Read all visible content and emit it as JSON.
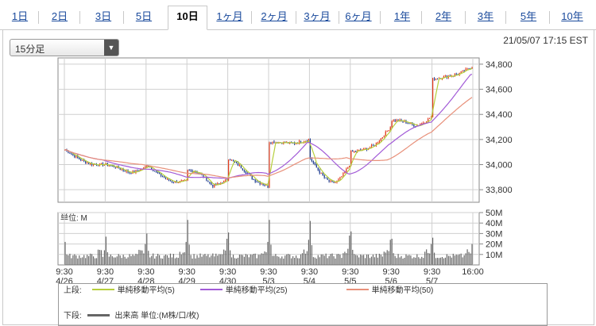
{
  "tabs": [
    {
      "label": "1日",
      "active": false
    },
    {
      "label": "2日",
      "active": false
    },
    {
      "label": "3日",
      "active": false
    },
    {
      "label": "5日",
      "active": false
    },
    {
      "label": "10日",
      "active": true
    },
    {
      "label": "1ヶ月",
      "active": false
    },
    {
      "label": "2ヶ月",
      "active": false
    },
    {
      "label": "3ヶ月",
      "active": false
    },
    {
      "label": "6ヶ月",
      "active": false
    },
    {
      "label": "1年",
      "active": false
    },
    {
      "label": "2年",
      "active": false
    },
    {
      "label": "3年",
      "active": false
    },
    {
      "label": "5年",
      "active": false
    },
    {
      "label": "10年",
      "active": false
    }
  ],
  "interval_select": {
    "value": "15分足"
  },
  "timestamp": "21/05/07 17:15 EST",
  "colors": {
    "up": "#e23b1e",
    "down": "#1d3b8f",
    "ma5": "#b6cf3c",
    "ma25": "#a25bd7",
    "ma50": "#e8907a",
    "volume": "#666666",
    "link": "#1a4a9c"
  },
  "chart_data": [
    {
      "type": "candlestick",
      "title": "",
      "ylabel": "",
      "ylim": [
        33700,
        34850
      ],
      "yticks": [
        "34,800",
        "34,600",
        "34,400",
        "34,200",
        "34,000",
        "33,800"
      ],
      "ytick_values": [
        34800,
        34600,
        34400,
        34200,
        34000,
        33800
      ],
      "x_sessions": [
        "4/26",
        "4/27",
        "4/28",
        "4/29",
        "4/30",
        "5/3",
        "5/4",
        "5/5",
        "5/6",
        "5/7"
      ],
      "session_anchors": [
        {
          "session": "4/26",
          "start": 34120,
          "end": 34000,
          "low": 33950,
          "high": 34130
        },
        {
          "session": "4/27",
          "start": 34000,
          "end": 33980,
          "low": 33910,
          "high": 34050
        },
        {
          "session": "4/28",
          "start": 34000,
          "end": 33870,
          "low": 33800,
          "high": 34020
        },
        {
          "session": "4/29",
          "start": 33950,
          "end": 33880,
          "low": 33780,
          "high": 34080
        },
        {
          "session": "4/30",
          "start": 34050,
          "end": 33830,
          "low": 33790,
          "high": 34100
        },
        {
          "session": "5/3",
          "start": 34180,
          "end": 34200,
          "low": 34150,
          "high": 34220
        },
        {
          "session": "5/4",
          "start": 34050,
          "end": 34000,
          "low": 33780,
          "high": 34100
        },
        {
          "session": "5/5",
          "start": 34100,
          "end": 34300,
          "low": 34020,
          "high": 34320
        },
        {
          "session": "5/6",
          "start": 34350,
          "end": 34380,
          "low": 34270,
          "high": 34450
        },
        {
          "session": "5/7",
          "start": 34680,
          "end": 34780,
          "low": 34650,
          "high": 34800
        }
      ],
      "series": [
        {
          "name": "単純移動平均(5)",
          "color": "#b6cf3c"
        },
        {
          "name": "単純移動平均(25)",
          "color": "#a25bd7"
        },
        {
          "name": "単純移動平均(50)",
          "color": "#e8907a"
        }
      ]
    },
    {
      "type": "bar",
      "title": "",
      "unit_label": "単位: M",
      "ylim": [
        0,
        50
      ],
      "yticks": [
        "50M",
        "40M",
        "30M",
        "20M",
        "10M"
      ],
      "ytick_values": [
        50,
        40,
        30,
        20,
        10
      ],
      "session_volume": [
        {
          "session": "4/26",
          "open_peak": 22,
          "close_peak": 14
        },
        {
          "session": "4/27",
          "open_peak": 27,
          "close_peak": 20
        },
        {
          "session": "4/28",
          "open_peak": 30,
          "close_peak": 22
        },
        {
          "session": "4/29",
          "open_peak": 43,
          "close_peak": 25
        },
        {
          "session": "4/30",
          "open_peak": 31,
          "close_peak": 22
        },
        {
          "session": "5/3",
          "open_peak": 43,
          "close_peak": 24
        },
        {
          "session": "5/4",
          "open_peak": 42,
          "close_peak": 28
        },
        {
          "session": "5/5",
          "open_peak": 32,
          "close_peak": 24
        },
        {
          "session": "5/6",
          "open_peak": 25,
          "close_peak": 20
        },
        {
          "session": "5/7",
          "open_peak": 26,
          "close_peak": 20
        }
      ]
    }
  ],
  "x_axis": {
    "labels": [
      {
        "time": "9:30",
        "date": "4/26"
      },
      {
        "time": "9:30",
        "date": "4/27"
      },
      {
        "time": "9:30",
        "date": "4/28"
      },
      {
        "time": "9:30",
        "date": "4/29"
      },
      {
        "time": "9:30",
        "date": "4/30"
      },
      {
        "time": "9:30",
        "date": "5/3"
      },
      {
        "time": "9:30",
        "date": "5/4"
      },
      {
        "time": "9:30",
        "date": "5/5"
      },
      {
        "time": "9:30",
        "date": "5/6"
      },
      {
        "time": "9:30",
        "date": "5/7"
      },
      {
        "time": "16:00",
        "date": ""
      }
    ]
  },
  "legend": {
    "upper_label": "上段:",
    "lower_label": "下段:",
    "items": [
      {
        "name": "単純移動平均(5)",
        "color": "#b6cf3c"
      },
      {
        "name": "単純移動平均(25)",
        "color": "#a25bd7"
      },
      {
        "name": "単純移動平均(50)",
        "color": "#e8907a"
      }
    ],
    "volume": {
      "name": "出来高 単位:(M株/口/枚)",
      "color": "#666666"
    }
  }
}
